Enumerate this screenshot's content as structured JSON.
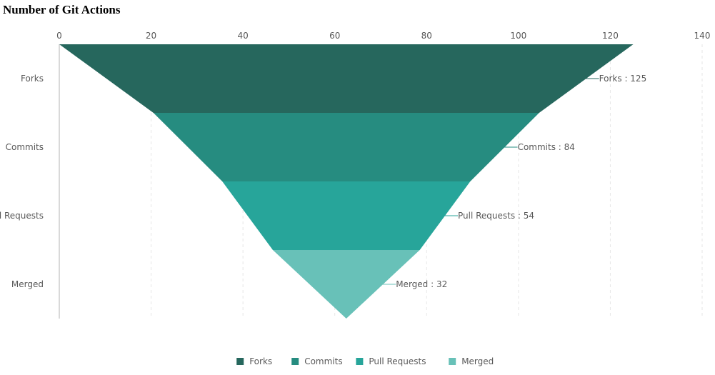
{
  "title": "Number of Git Actions",
  "chart_data": {
    "type": "funnel",
    "title": "Number of Git Actions",
    "categories": [
      "Forks",
      "Commits",
      "Pull Requests",
      "Merged"
    ],
    "values": [
      125,
      84,
      54,
      32
    ],
    "data_labels": [
      "Forks : 125",
      "Commits : 84",
      "Pull Requests : 54",
      "Merged : 32"
    ],
    "colors": [
      "#26675d",
      "#268c80",
      "#27a59a",
      "#68c1b8"
    ],
    "xlim": [
      0,
      140
    ],
    "x_ticks": [
      "0",
      "20",
      "40",
      "60",
      "80",
      "100",
      "120",
      "140"
    ],
    "grid": true,
    "legend": {
      "position": "bottom",
      "items": [
        "Forks",
        "Commits",
        "Pull Requests",
        "Merged"
      ]
    }
  }
}
